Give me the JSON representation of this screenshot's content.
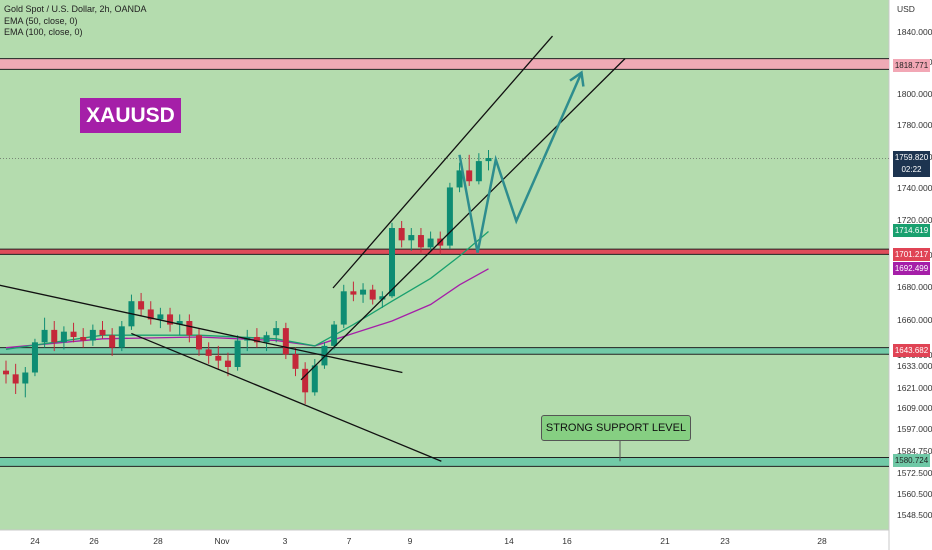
{
  "header": {
    "instrument": "Gold Spot / U.S. Dollar, 2h, OANDA",
    "ema50": "EMA (50, close, 0)",
    "ema100": "EMA (100, close, 0)",
    "symbol": "XAUUSD"
  },
  "annotation": {
    "support_text": "STRONG SUPPORT LEVEL"
  },
  "colors": {
    "background": "#b4dcae",
    "axis_bg": "#ffffff",
    "bull_candle": "#0e8c73",
    "bear_candle": "#c4283a",
    "ema50": "#19a06f",
    "ema100": "#a51fa8",
    "zone_red": "#f2a7b5",
    "zone_green": "#6fc8a6",
    "projection": "#2e8d8e",
    "live_tag": "#1d3450",
    "symbol_badge": "#a51fa8"
  },
  "chart_data": {
    "type": "candlestick",
    "currency_label": "USD",
    "y_axis_labels": [
      "1840.000",
      "1820.000",
      "1800.000",
      "1780.000",
      "1760.000",
      "1740.000",
      "1720.000",
      "1700.000",
      "1680.000",
      "1660.000",
      "1640.000",
      "1633.000",
      "1621.000",
      "1609.000",
      "1597.000",
      "1584.750",
      "1572.500",
      "1560.500",
      "1548.500"
    ],
    "x_axis_labels": [
      "24",
      "26",
      "28",
      "Nov",
      "3",
      "7",
      "9",
      "14",
      "16",
      "21",
      "23",
      "28"
    ],
    "price_tags": [
      {
        "value": "1818.771",
        "color": "#f2a7b5",
        "text_color": "#222"
      },
      {
        "value": "1714.619",
        "color": "#19a06f",
        "text_color": "#fff"
      },
      {
        "value": "1701.217",
        "color": "#e04455",
        "text_color": "#fff"
      },
      {
        "value": "1692.499",
        "color": "#a51fa8",
        "text_color": "#fff"
      },
      {
        "value": "1643.682",
        "color": "#e04455",
        "text_color": "#fff"
      },
      {
        "value": "1580.724",
        "color": "#6fc8a6",
        "text_color": "#222"
      }
    ],
    "live_price": {
      "value": "1759.820",
      "countdown": "02:22"
    },
    "zones": [
      {
        "name": "resistance",
        "low": 1816,
        "high": 1823,
        "color": "#f2a7b5"
      },
      {
        "name": "support",
        "low": 1701,
        "high": 1704,
        "color": "#e04455"
      },
      {
        "name": "support",
        "low": 1641,
        "high": 1645,
        "color": "#6fc8a6"
      },
      {
        "name": "strong-support",
        "low": 1577,
        "high": 1582,
        "color": "#6fc8a6"
      }
    ],
    "trendlines": [
      {
        "name": "descending-upper",
        "from": {
          "x": "Oct 22 08:00",
          "y": 1682
        },
        "to": {
          "x": "Nov 8 18:00",
          "y": 1630
        }
      },
      {
        "name": "descending-lower",
        "from": {
          "x": "Oct 27 04:00",
          "y": 1653
        },
        "to": {
          "x": "Nov 10 14:00",
          "y": 1580
        }
      },
      {
        "name": "channel-upper",
        "from": {
          "x": "Nov 6 00:00",
          "y": 1680
        },
        "to": {
          "x": "Nov 15 12:00",
          "y": 1838
        }
      },
      {
        "name": "channel-lower",
        "from": {
          "x": "Nov 4 00:00",
          "y": 1626
        },
        "to": {
          "x": "Nov 18 00:00",
          "y": 1823
        }
      }
    ],
    "projection_path": [
      {
        "x": "Nov 11 12:00",
        "y": 1762
      },
      {
        "x": "Nov 12 10:00",
        "y": 1702
      },
      {
        "x": "Nov 13 08:00",
        "y": 1759
      },
      {
        "x": "Nov 14 06:00",
        "y": 1720
      },
      {
        "x": "Nov 16 12:00",
        "y": 1814
      }
    ],
    "candles": [
      {
        "t": 0,
        "o": 1631,
        "h": 1637,
        "l": 1624,
        "c": 1629
      },
      {
        "t": 1,
        "o": 1629,
        "h": 1635,
        "l": 1618,
        "c": 1624
      },
      {
        "t": 2,
        "o": 1624,
        "h": 1633,
        "l": 1616,
        "c": 1630
      },
      {
        "t": 3,
        "o": 1630,
        "h": 1650,
        "l": 1628,
        "c": 1648
      },
      {
        "t": 4,
        "o": 1648,
        "h": 1662,
        "l": 1645,
        "c": 1655
      },
      {
        "t": 5,
        "o": 1655,
        "h": 1660,
        "l": 1643,
        "c": 1648
      },
      {
        "t": 6,
        "o": 1648,
        "h": 1657,
        "l": 1644,
        "c": 1654
      },
      {
        "t": 7,
        "o": 1654,
        "h": 1659,
        "l": 1648,
        "c": 1651
      },
      {
        "t": 8,
        "o": 1651,
        "h": 1656,
        "l": 1645,
        "c": 1649
      },
      {
        "t": 9,
        "o": 1649,
        "h": 1658,
        "l": 1646,
        "c": 1655
      },
      {
        "t": 10,
        "o": 1655,
        "h": 1660,
        "l": 1650,
        "c": 1652
      },
      {
        "t": 11,
        "o": 1652,
        "h": 1656,
        "l": 1640,
        "c": 1645
      },
      {
        "t": 12,
        "o": 1645,
        "h": 1660,
        "l": 1643,
        "c": 1657
      },
      {
        "t": 13,
        "o": 1657,
        "h": 1676,
        "l": 1655,
        "c": 1672
      },
      {
        "t": 14,
        "o": 1672,
        "h": 1677,
        "l": 1663,
        "c": 1667
      },
      {
        "t": 15,
        "o": 1667,
        "h": 1672,
        "l": 1658,
        "c": 1661
      },
      {
        "t": 16,
        "o": 1661,
        "h": 1668,
        "l": 1656,
        "c": 1664
      },
      {
        "t": 17,
        "o": 1664,
        "h": 1668,
        "l": 1654,
        "c": 1658
      },
      {
        "t": 18,
        "o": 1658,
        "h": 1664,
        "l": 1652,
        "c": 1660
      },
      {
        "t": 19,
        "o": 1660,
        "h": 1664,
        "l": 1648,
        "c": 1652
      },
      {
        "t": 20,
        "o": 1652,
        "h": 1656,
        "l": 1640,
        "c": 1644
      },
      {
        "t": 21,
        "o": 1644,
        "h": 1648,
        "l": 1635,
        "c": 1640
      },
      {
        "t": 22,
        "o": 1640,
        "h": 1646,
        "l": 1632,
        "c": 1637
      },
      {
        "t": 23,
        "o": 1637,
        "h": 1642,
        "l": 1628,
        "c": 1633
      },
      {
        "t": 24,
        "o": 1633,
        "h": 1652,
        "l": 1631,
        "c": 1649
      },
      {
        "t": 25,
        "o": 1649,
        "h": 1655,
        "l": 1643,
        "c": 1651
      },
      {
        "t": 26,
        "o": 1651,
        "h": 1656,
        "l": 1645,
        "c": 1648
      },
      {
        "t": 27,
        "o": 1648,
        "h": 1654,
        "l": 1643,
        "c": 1652
      },
      {
        "t": 28,
        "o": 1652,
        "h": 1660,
        "l": 1648,
        "c": 1656
      },
      {
        "t": 29,
        "o": 1656,
        "h": 1659,
        "l": 1638,
        "c": 1641
      },
      {
        "t": 30,
        "o": 1641,
        "h": 1645,
        "l": 1628,
        "c": 1632
      },
      {
        "t": 31,
        "o": 1632,
        "h": 1636,
        "l": 1612,
        "c": 1619
      },
      {
        "t": 32,
        "o": 1619,
        "h": 1638,
        "l": 1617,
        "c": 1634
      },
      {
        "t": 33,
        "o": 1634,
        "h": 1648,
        "l": 1632,
        "c": 1646
      },
      {
        "t": 34,
        "o": 1646,
        "h": 1660,
        "l": 1644,
        "c": 1658
      },
      {
        "t": 35,
        "o": 1658,
        "h": 1682,
        "l": 1656,
        "c": 1678
      },
      {
        "t": 36,
        "o": 1678,
        "h": 1684,
        "l": 1672,
        "c": 1676
      },
      {
        "t": 37,
        "o": 1676,
        "h": 1683,
        "l": 1671,
        "c": 1679
      },
      {
        "t": 38,
        "o": 1679,
        "h": 1682,
        "l": 1670,
        "c": 1673
      },
      {
        "t": 39,
        "o": 1673,
        "h": 1678,
        "l": 1668,
        "c": 1675
      },
      {
        "t": 40,
        "o": 1675,
        "h": 1719,
        "l": 1674,
        "c": 1716
      },
      {
        "t": 41,
        "o": 1716,
        "h": 1720,
        "l": 1705,
        "c": 1709
      },
      {
        "t": 42,
        "o": 1709,
        "h": 1716,
        "l": 1703,
        "c": 1712
      },
      {
        "t": 43,
        "o": 1712,
        "h": 1716,
        "l": 1702,
        "c": 1705
      },
      {
        "t": 44,
        "o": 1705,
        "h": 1714,
        "l": 1703,
        "c": 1710
      },
      {
        "t": 45,
        "o": 1710,
        "h": 1714,
        "l": 1701,
        "c": 1706
      },
      {
        "t": 46,
        "o": 1706,
        "h": 1744,
        "l": 1704,
        "c": 1741
      },
      {
        "t": 47,
        "o": 1741,
        "h": 1757,
        "l": 1738,
        "c": 1752
      },
      {
        "t": 48,
        "o": 1752,
        "h": 1762,
        "l": 1742,
        "c": 1745
      },
      {
        "t": 49,
        "o": 1745,
        "h": 1763,
        "l": 1743,
        "c": 1758
      },
      {
        "t": 50,
        "o": 1758,
        "h": 1765,
        "l": 1752,
        "c": 1760
      }
    ],
    "ema50": [
      [
        0,
        1644
      ],
      [
        10,
        1652
      ],
      [
        20,
        1652
      ],
      [
        28,
        1650
      ],
      [
        32,
        1646
      ],
      [
        36,
        1658
      ],
      [
        40,
        1672
      ],
      [
        44,
        1686
      ],
      [
        47,
        1700
      ],
      [
        50,
        1714
      ]
    ],
    "ema100": [
      [
        0,
        1645
      ],
      [
        10,
        1650
      ],
      [
        20,
        1651
      ],
      [
        28,
        1649
      ],
      [
        32,
        1646
      ],
      [
        36,
        1653
      ],
      [
        40,
        1660
      ],
      [
        44,
        1670
      ],
      [
        47,
        1682
      ],
      [
        50,
        1692
      ]
    ]
  }
}
